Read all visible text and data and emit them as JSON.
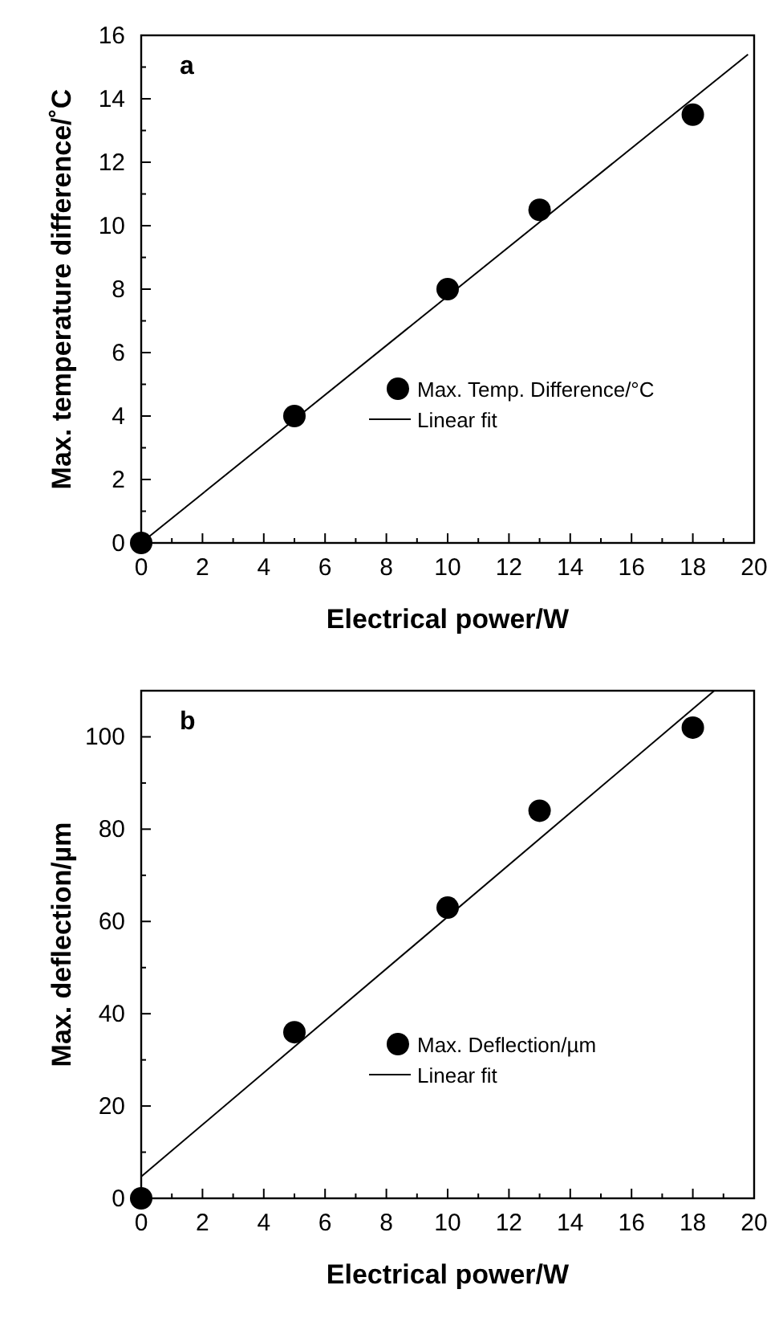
{
  "chart_data": [
    {
      "type": "scatter",
      "xlabel": "Electrical power/W",
      "ylabel": "Max. temperature difference/˚C",
      "annotations": [
        "a"
      ],
      "xlim": [
        0,
        20
      ],
      "xticks": [
        0,
        2,
        4,
        6,
        8,
        10,
        12,
        14,
        16,
        18,
        20
      ],
      "ylim": [
        0,
        16
      ],
      "yticks": [
        0,
        2,
        4,
        6,
        8,
        10,
        12,
        14,
        16
      ],
      "marker": "circle",
      "legend": "right",
      "grid": false,
      "series": [
        {
          "name": "Max. Temp. Difference/°C",
          "color": "#000000",
          "x": [
            0,
            5,
            10,
            13,
            18
          ],
          "values": [
            0,
            4,
            8,
            10.5,
            13.5
          ]
        },
        {
          "name": "Linear fit",
          "type": "line",
          "color": "#000000",
          "marker": "none",
          "x": [
            0,
            19.8
          ],
          "values": [
            0,
            15.4
          ]
        }
      ]
    },
    {
      "type": "scatter",
      "xlabel": "Electrical power/W",
      "ylabel": "Max. deflection/µm",
      "annotations": [
        "b"
      ],
      "xlim": [
        0,
        20
      ],
      "xticks": [
        0,
        2,
        4,
        6,
        8,
        10,
        12,
        14,
        16,
        18,
        20
      ],
      "ylim": [
        0,
        110
      ],
      "yticks": [
        0,
        20,
        40,
        60,
        80,
        100
      ],
      "marker": "circle",
      "legend": "right",
      "grid": false,
      "series": [
        {
          "name": "Max. Deflection/µm",
          "color": "#000000",
          "x": [
            0,
            5,
            10,
            13,
            18
          ],
          "values": [
            0,
            36,
            63,
            84,
            102
          ]
        },
        {
          "name": "Linear fit",
          "type": "line",
          "color": "#000000",
          "marker": "none",
          "x": [
            0,
            18.7
          ],
          "values": [
            4.7,
            110
          ]
        }
      ]
    }
  ]
}
